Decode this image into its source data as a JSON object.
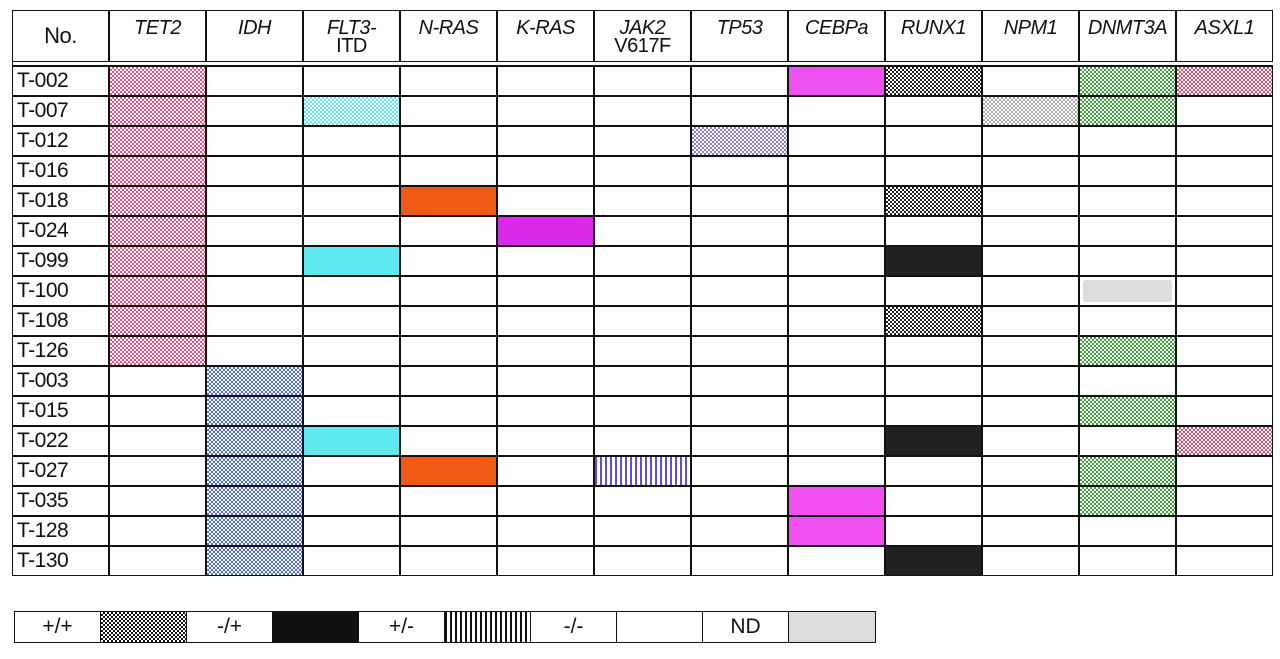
{
  "header": {
    "no_label": "No.",
    "genes": [
      {
        "key": "TET2",
        "line1": "TET2",
        "line2": "",
        "color": "#f0507a"
      },
      {
        "key": "IDH",
        "line1": "IDH",
        "line2": "",
        "color": "#4a6ce8"
      },
      {
        "key": "FLT3",
        "line1": "FLT3-",
        "line2": "ITD",
        "color": "#5ee8f0"
      },
      {
        "key": "NRAS",
        "line1": "N-RAS",
        "line2": "",
        "color": "#f05a14"
      },
      {
        "key": "KRAS",
        "line1": "K-RAS",
        "line2": "",
        "color": "#d82ae8"
      },
      {
        "key": "JAK2",
        "line1": "JAK2",
        "line2": "V617F",
        "color": "#5a50d8"
      },
      {
        "key": "TP53",
        "line1": "TP53",
        "line2": "",
        "color": "#8a7ad8"
      },
      {
        "key": "CEBPA",
        "line1": "CEBPa",
        "line2": "",
        "color": "#f050f0"
      },
      {
        "key": "RUNX1",
        "line1": "RUNX1",
        "line2": "",
        "color": "#222222"
      },
      {
        "key": "NPM1",
        "line1": "NPM1",
        "line2": "",
        "color": "#a8a8a8"
      },
      {
        "key": "DNMT3A",
        "line1": "DNMT3A",
        "line2": "",
        "color": "#3aa03a"
      },
      {
        "key": "ASXL1",
        "line1": "ASXL1",
        "line2": "",
        "color": "#d05070"
      }
    ]
  },
  "rows": [
    {
      "id": "T-002",
      "cells": [
        "het",
        "",
        "",
        "",
        "",
        "",
        "",
        "solid",
        "het",
        "",
        "het",
        "het"
      ]
    },
    {
      "id": "T-007",
      "cells": [
        "het",
        "",
        "het",
        "",
        "",
        "",
        "",
        "",
        "",
        "het",
        "het",
        ""
      ]
    },
    {
      "id": "T-012",
      "cells": [
        "het",
        "",
        "",
        "",
        "",
        "",
        "het",
        "",
        "",
        "",
        "",
        ""
      ]
    },
    {
      "id": "T-016",
      "cells": [
        "het",
        "",
        "",
        "",
        "",
        "",
        "",
        "",
        "",
        "",
        "",
        ""
      ]
    },
    {
      "id": "T-018",
      "cells": [
        "het",
        "",
        "",
        "solid",
        "",
        "",
        "",
        "",
        "het",
        "",
        "",
        ""
      ]
    },
    {
      "id": "T-024",
      "cells": [
        "het",
        "",
        "",
        "",
        "solid",
        "",
        "",
        "",
        "",
        "",
        "",
        ""
      ]
    },
    {
      "id": "T-099",
      "cells": [
        "het",
        "",
        "solid",
        "",
        "",
        "",
        "",
        "",
        "solid",
        "",
        "",
        ""
      ]
    },
    {
      "id": "T-100",
      "cells": [
        "het",
        "",
        "",
        "",
        "",
        "",
        "",
        "",
        "",
        "",
        "nd",
        ""
      ]
    },
    {
      "id": "T-108",
      "cells": [
        "het",
        "",
        "",
        "",
        "",
        "",
        "",
        "",
        "het",
        "",
        "",
        ""
      ]
    },
    {
      "id": "T-126",
      "cells": [
        "het",
        "",
        "",
        "",
        "",
        "",
        "",
        "",
        "",
        "",
        "het",
        ""
      ]
    },
    {
      "id": "T-003",
      "cells": [
        "",
        "het",
        "",
        "",
        "",
        "",
        "",
        "",
        "",
        "",
        "",
        ""
      ]
    },
    {
      "id": "T-015",
      "cells": [
        "",
        "het",
        "",
        "",
        "",
        "",
        "",
        "",
        "",
        "",
        "het",
        ""
      ]
    },
    {
      "id": "T-022",
      "cells": [
        "",
        "het",
        "solid",
        "",
        "",
        "",
        "",
        "",
        "solid",
        "",
        "",
        "het"
      ]
    },
    {
      "id": "T-027",
      "cells": [
        "",
        "het",
        "",
        "solid",
        "",
        "vstripe",
        "",
        "",
        "",
        "",
        "het",
        ""
      ]
    },
    {
      "id": "T-035",
      "cells": [
        "",
        "het",
        "",
        "",
        "",
        "",
        "",
        "solid",
        "",
        "",
        "het",
        ""
      ]
    },
    {
      "id": "T-128",
      "cells": [
        "",
        "het",
        "",
        "",
        "",
        "",
        "",
        "solid",
        "",
        "",
        "",
        ""
      ]
    },
    {
      "id": "T-130",
      "cells": [
        "",
        "het",
        "",
        "",
        "",
        "",
        "",
        "",
        "solid",
        "",
        "",
        ""
      ]
    }
  ],
  "legend": [
    {
      "label": "+/+",
      "pattern": "het",
      "color": "#111111"
    },
    {
      "label": "-/+",
      "pattern": "solid",
      "color": "#111111"
    },
    {
      "label": "+/-",
      "pattern": "vstripe",
      "color": "#111111"
    },
    {
      "label": "-/-",
      "pattern": "empty",
      "color": "#ffffff"
    },
    {
      "label": "ND",
      "pattern": "nd",
      "color": "#dcdcdc"
    }
  ]
}
